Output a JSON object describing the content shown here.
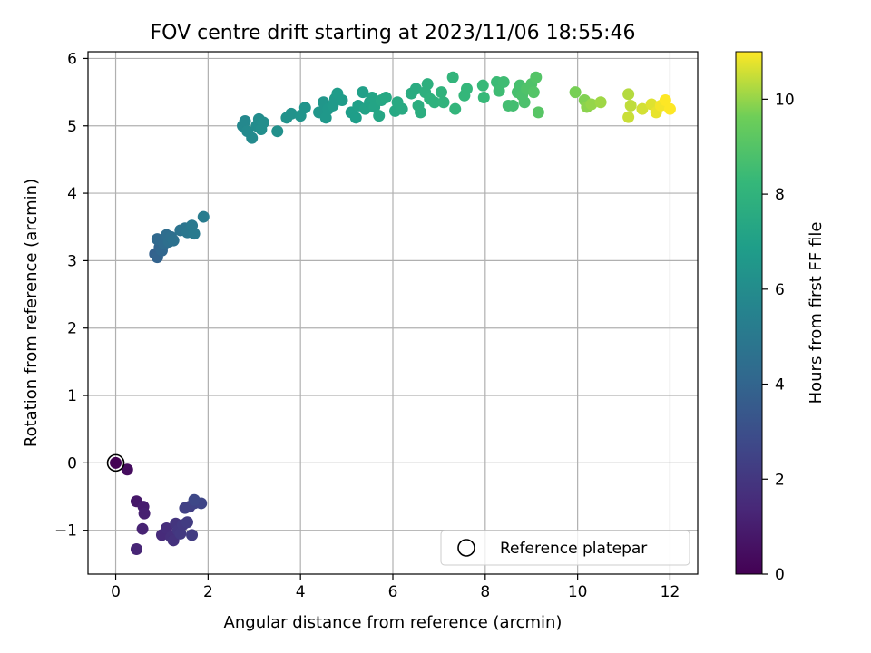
{
  "chart_data": {
    "type": "scatter",
    "title": "FOV centre drift starting at 2023/11/06 18:55:46",
    "xlabel": "Angular distance from reference (arcmin)",
    "ylabel": "Rotation from reference (arcmin)",
    "xlim": [
      -0.6,
      12.6
    ],
    "ylim": [
      -1.65,
      6.1
    ],
    "xticks": [
      0,
      2,
      4,
      6,
      8,
      10,
      12
    ],
    "yticks": [
      -1,
      0,
      1,
      2,
      3,
      4,
      5,
      6
    ],
    "grid": true,
    "legend": {
      "position": "lower-right",
      "entries": [
        "Reference platepar"
      ]
    },
    "reference_point": {
      "x": 0,
      "y": 0
    },
    "colorbar": {
      "label": "Hours from first FF file",
      "range": [
        0,
        11
      ],
      "ticks": [
        0,
        2,
        4,
        6,
        8,
        10
      ],
      "colormap": "viridis"
    },
    "points": [
      {
        "x": 0.0,
        "y": 0.0,
        "t": 0.0
      },
      {
        "x": 0.25,
        "y": -0.1,
        "t": 0.4
      },
      {
        "x": 0.45,
        "y": -0.57,
        "t": 0.8
      },
      {
        "x": 0.6,
        "y": -0.65,
        "t": 1.0
      },
      {
        "x": 0.62,
        "y": -0.75,
        "t": 1.1
      },
      {
        "x": 0.58,
        "y": -0.98,
        "t": 1.2
      },
      {
        "x": 0.45,
        "y": -1.28,
        "t": 1.3
      },
      {
        "x": 1.0,
        "y": -1.07,
        "t": 1.5
      },
      {
        "x": 1.1,
        "y": -0.97,
        "t": 1.6
      },
      {
        "x": 1.2,
        "y": -1.1,
        "t": 1.7
      },
      {
        "x": 1.25,
        "y": -1.15,
        "t": 1.8
      },
      {
        "x": 1.3,
        "y": -0.9,
        "t": 1.9
      },
      {
        "x": 1.35,
        "y": -1.0,
        "t": 2.0
      },
      {
        "x": 1.4,
        "y": -1.05,
        "t": 2.1
      },
      {
        "x": 1.45,
        "y": -0.92,
        "t": 2.1
      },
      {
        "x": 1.55,
        "y": -0.88,
        "t": 2.2
      },
      {
        "x": 1.65,
        "y": -1.07,
        "t": 2.2
      },
      {
        "x": 1.6,
        "y": -0.65,
        "t": 2.3
      },
      {
        "x": 1.5,
        "y": -0.67,
        "t": 2.4
      },
      {
        "x": 1.7,
        "y": -0.6,
        "t": 2.5
      },
      {
        "x": 1.85,
        "y": -0.6,
        "t": 2.6
      },
      {
        "x": 1.7,
        "y": -0.55,
        "t": 2.7
      },
      {
        "x": 0.85,
        "y": 3.1,
        "t": 3.8
      },
      {
        "x": 0.9,
        "y": 3.05,
        "t": 3.9
      },
      {
        "x": 0.95,
        "y": 3.2,
        "t": 4.0
      },
      {
        "x": 1.0,
        "y": 3.15,
        "t": 4.1
      },
      {
        "x": 0.9,
        "y": 3.32,
        "t": 4.2
      },
      {
        "x": 1.05,
        "y": 3.25,
        "t": 4.3
      },
      {
        "x": 1.1,
        "y": 3.38,
        "t": 4.4
      },
      {
        "x": 1.15,
        "y": 3.28,
        "t": 4.5
      },
      {
        "x": 1.2,
        "y": 3.35,
        "t": 4.5
      },
      {
        "x": 1.25,
        "y": 3.3,
        "t": 4.6
      },
      {
        "x": 1.4,
        "y": 3.45,
        "t": 4.7
      },
      {
        "x": 1.5,
        "y": 3.48,
        "t": 4.8
      },
      {
        "x": 1.55,
        "y": 3.42,
        "t": 4.9
      },
      {
        "x": 1.65,
        "y": 3.52,
        "t": 5.0
      },
      {
        "x": 1.7,
        "y": 3.4,
        "t": 5.1
      },
      {
        "x": 1.9,
        "y": 3.65,
        "t": 5.2
      },
      {
        "x": 2.75,
        "y": 5.0,
        "t": 5.8
      },
      {
        "x": 2.8,
        "y": 5.07,
        "t": 5.8
      },
      {
        "x": 2.85,
        "y": 4.92,
        "t": 5.9
      },
      {
        "x": 2.95,
        "y": 4.82,
        "t": 5.9
      },
      {
        "x": 3.05,
        "y": 5.0,
        "t": 6.0
      },
      {
        "x": 3.1,
        "y": 5.1,
        "t": 6.0
      },
      {
        "x": 3.15,
        "y": 4.95,
        "t": 6.1
      },
      {
        "x": 3.2,
        "y": 5.05,
        "t": 6.1
      },
      {
        "x": 3.5,
        "y": 4.92,
        "t": 6.2
      },
      {
        "x": 3.7,
        "y": 5.12,
        "t": 6.3
      },
      {
        "x": 3.8,
        "y": 5.18,
        "t": 6.3
      },
      {
        "x": 4.0,
        "y": 5.15,
        "t": 6.4
      },
      {
        "x": 4.1,
        "y": 5.27,
        "t": 6.4
      },
      {
        "x": 4.4,
        "y": 5.2,
        "t": 6.5
      },
      {
        "x": 4.5,
        "y": 5.35,
        "t": 6.5
      },
      {
        "x": 4.55,
        "y": 5.12,
        "t": 6.6
      },
      {
        "x": 4.6,
        "y": 5.25,
        "t": 6.6
      },
      {
        "x": 4.7,
        "y": 5.3,
        "t": 6.7
      },
      {
        "x": 4.75,
        "y": 5.4,
        "t": 6.7
      },
      {
        "x": 4.8,
        "y": 5.48,
        "t": 6.8
      },
      {
        "x": 4.9,
        "y": 5.38,
        "t": 6.8
      },
      {
        "x": 5.1,
        "y": 5.2,
        "t": 6.9
      },
      {
        "x": 5.2,
        "y": 5.12,
        "t": 6.9
      },
      {
        "x": 5.25,
        "y": 5.3,
        "t": 7.0
      },
      {
        "x": 5.35,
        "y": 5.5,
        "t": 7.0
      },
      {
        "x": 5.4,
        "y": 5.25,
        "t": 7.1
      },
      {
        "x": 5.5,
        "y": 5.35,
        "t": 7.1
      },
      {
        "x": 5.55,
        "y": 5.42,
        "t": 7.2
      },
      {
        "x": 5.6,
        "y": 5.28,
        "t": 7.2
      },
      {
        "x": 5.7,
        "y": 5.15,
        "t": 7.3
      },
      {
        "x": 5.75,
        "y": 5.38,
        "t": 7.3
      },
      {
        "x": 5.85,
        "y": 5.42,
        "t": 7.4
      },
      {
        "x": 6.05,
        "y": 5.22,
        "t": 7.4
      },
      {
        "x": 6.1,
        "y": 5.35,
        "t": 7.5
      },
      {
        "x": 6.2,
        "y": 5.25,
        "t": 7.5
      },
      {
        "x": 6.4,
        "y": 5.48,
        "t": 7.6
      },
      {
        "x": 6.5,
        "y": 5.55,
        "t": 7.6
      },
      {
        "x": 6.55,
        "y": 5.3,
        "t": 7.7
      },
      {
        "x": 6.6,
        "y": 5.2,
        "t": 7.7
      },
      {
        "x": 6.7,
        "y": 5.5,
        "t": 7.8
      },
      {
        "x": 6.75,
        "y": 5.62,
        "t": 7.8
      },
      {
        "x": 6.8,
        "y": 5.4,
        "t": 7.9
      },
      {
        "x": 6.9,
        "y": 5.35,
        "t": 7.9
      },
      {
        "x": 7.05,
        "y": 5.5,
        "t": 8.0
      },
      {
        "x": 7.1,
        "y": 5.35,
        "t": 8.0
      },
      {
        "x": 7.3,
        "y": 5.72,
        "t": 8.1
      },
      {
        "x": 7.35,
        "y": 5.25,
        "t": 8.1
      },
      {
        "x": 7.55,
        "y": 5.45,
        "t": 8.2
      },
      {
        "x": 7.6,
        "y": 5.55,
        "t": 8.2
      },
      {
        "x": 7.95,
        "y": 5.6,
        "t": 8.3
      },
      {
        "x": 7.97,
        "y": 5.42,
        "t": 8.3
      },
      {
        "x": 8.25,
        "y": 5.65,
        "t": 8.4
      },
      {
        "x": 8.3,
        "y": 5.52,
        "t": 8.5
      },
      {
        "x": 8.4,
        "y": 5.65,
        "t": 8.5
      },
      {
        "x": 8.5,
        "y": 5.3,
        "t": 8.6
      },
      {
        "x": 8.6,
        "y": 5.3,
        "t": 8.6
      },
      {
        "x": 8.7,
        "y": 5.5,
        "t": 8.7
      },
      {
        "x": 8.75,
        "y": 5.6,
        "t": 8.7
      },
      {
        "x": 8.8,
        "y": 5.45,
        "t": 8.8
      },
      {
        "x": 8.85,
        "y": 5.35,
        "t": 8.8
      },
      {
        "x": 8.9,
        "y": 5.55,
        "t": 8.9
      },
      {
        "x": 9.0,
        "y": 5.62,
        "t": 8.9
      },
      {
        "x": 9.05,
        "y": 5.5,
        "t": 9.0
      },
      {
        "x": 9.1,
        "y": 5.72,
        "t": 9.0
      },
      {
        "x": 9.15,
        "y": 5.2,
        "t": 9.1
      },
      {
        "x": 9.95,
        "y": 5.5,
        "t": 9.7
      },
      {
        "x": 10.15,
        "y": 5.38,
        "t": 9.8
      },
      {
        "x": 10.2,
        "y": 5.28,
        "t": 9.9
      },
      {
        "x": 10.3,
        "y": 5.32,
        "t": 10.0
      },
      {
        "x": 10.5,
        "y": 5.35,
        "t": 10.1
      },
      {
        "x": 11.1,
        "y": 5.47,
        "t": 10.3
      },
      {
        "x": 11.15,
        "y": 5.3,
        "t": 10.4
      },
      {
        "x": 11.1,
        "y": 5.13,
        "t": 10.5
      },
      {
        "x": 11.4,
        "y": 5.25,
        "t": 10.6
      },
      {
        "x": 11.6,
        "y": 5.32,
        "t": 10.7
      },
      {
        "x": 11.7,
        "y": 5.2,
        "t": 10.8
      },
      {
        "x": 11.8,
        "y": 5.3,
        "t": 10.9
      },
      {
        "x": 11.9,
        "y": 5.38,
        "t": 11.0
      },
      {
        "x": 12.0,
        "y": 5.25,
        "t": 11.0
      }
    ]
  }
}
